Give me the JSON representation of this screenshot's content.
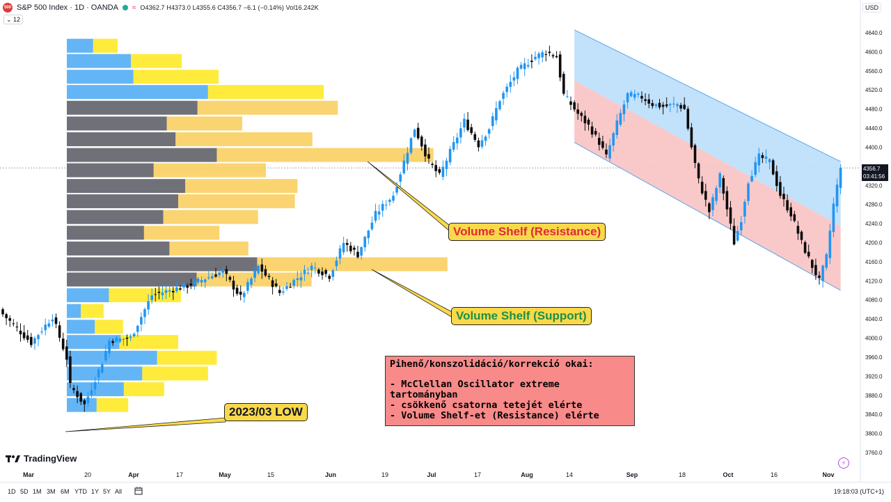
{
  "header": {
    "symbol_badge": "500",
    "title": "S&P 500 Index · 1D · OANDA",
    "ohlc": "O4362.7 H4373.0 L4355.6 C4356.7 −6.1 (−0.14%) Vol16.242K",
    "indicator_count": "12",
    "currency": "USD"
  },
  "price_tag": {
    "price": "4356.7",
    "countdown": "03:41:56"
  },
  "brand": {
    "logo_text": "TradingView"
  },
  "bottom": {
    "ranges": [
      "1D",
      "5D",
      "1M",
      "3M",
      "6M",
      "YTD",
      "1Y",
      "5Y",
      "All"
    ],
    "time": "19:18:03 (UTC+1)"
  },
  "annotations": {
    "resistance": "Volume Shelf (Resistance)",
    "support": "Volume Shelf (Support)",
    "low": "2023/03 LOW"
  },
  "note": {
    "title": "Pihenő/konszolidáció/korrekció okai:",
    "lines": [
      "- McClellan Oscillator extreme tartományban",
      "- csökkenő csatorna tetejét elérte",
      "- Volume Shelf-et (Resistance) elérte"
    ]
  },
  "colors": {
    "up": "#2196f3",
    "down": "#0b0b0b",
    "vp_up": "#64b5f6",
    "vp_gray": "#707078",
    "vp_yellow": "#ffeb3b",
    "vp_orange": "#f9cd58",
    "channel_blue": "#bbdefb",
    "channel_red": "#f8c3c3"
  },
  "chart_data": {
    "type": "candlestick",
    "y_axis": {
      "ticks": [
        3760,
        3800,
        3840,
        3880,
        3920,
        3960,
        4000,
        4040,
        4080,
        4120,
        4160,
        4200,
        4240,
        4280,
        4320,
        4360,
        4400,
        4440,
        4480,
        4520,
        4560,
        4600,
        4640
      ],
      "range": [
        3738,
        4672
      ]
    },
    "x_axis": {
      "labels": [
        "Mar",
        "20",
        "Apr",
        "17",
        "May",
        "15",
        "Jun",
        "19",
        "Jul",
        "17",
        "Aug",
        "14",
        "Sep",
        "18",
        "Oct",
        "16",
        "Nov"
      ],
      "bold": [
        "Mar",
        "Apr",
        "May",
        "Jun",
        "Jul",
        "Aug",
        "Sep",
        "Oct",
        "Nov"
      ]
    },
    "last_price": 4356.7,
    "path_closes": [
      [
        0,
        4050
      ],
      [
        8,
        3990
      ],
      [
        14,
        4045
      ],
      [
        18,
        3958
      ],
      [
        19,
        3900
      ],
      [
        23,
        3860
      ],
      [
        28,
        3950
      ],
      [
        30,
        3995
      ],
      [
        36,
        4000
      ],
      [
        42,
        4090
      ],
      [
        52,
        4110
      ],
      [
        62,
        4140
      ],
      [
        67,
        4085
      ],
      [
        72,
        4150
      ],
      [
        78,
        4095
      ],
      [
        82,
        4120
      ],
      [
        87,
        4150
      ],
      [
        92,
        4130
      ],
      [
        96,
        4200
      ],
      [
        100,
        4175
      ],
      [
        105,
        4260
      ],
      [
        110,
        4300
      ],
      [
        116,
        4440
      ],
      [
        120,
        4370
      ],
      [
        123,
        4340
      ],
      [
        126,
        4390
      ],
      [
        130,
        4455
      ],
      [
        134,
        4405
      ],
      [
        137,
        4440
      ],
      [
        140,
        4500
      ],
      [
        145,
        4560
      ],
      [
        150,
        4590
      ],
      [
        153,
        4600
      ],
      [
        156,
        4590
      ],
      [
        158,
        4510
      ],
      [
        162,
        4470
      ],
      [
        165,
        4445
      ],
      [
        168,
        4410
      ],
      [
        170,
        4380
      ],
      [
        173,
        4450
      ],
      [
        176,
        4510
      ],
      [
        180,
        4505
      ],
      [
        183,
        4490
      ],
      [
        186,
        4485
      ],
      [
        190,
        4490
      ],
      [
        192,
        4480
      ],
      [
        194,
        4400
      ],
      [
        196,
        4330
      ],
      [
        199,
        4265
      ],
      [
        202,
        4340
      ],
      [
        204,
        4270
      ],
      [
        206,
        4200
      ],
      [
        208,
        4250
      ],
      [
        210,
        4330
      ],
      [
        213,
        4380
      ],
      [
        216,
        4370
      ],
      [
        219,
        4300
      ],
      [
        222,
        4260
      ],
      [
        225,
        4200
      ],
      [
        228,
        4150
      ],
      [
        230,
        4120
      ],
      [
        232,
        4170
      ],
      [
        234,
        4280
      ],
      [
        236,
        4356.7
      ]
    ],
    "volume_profile": [
      {
        "price": 4612,
        "buy": 0.3,
        "sell": 0.28
      },
      {
        "price": 4580,
        "buy": 0.73,
        "sell": 0.58
      },
      {
        "price": 4547,
        "buy": 0.76,
        "sell": 0.97
      },
      {
        "price": 4515,
        "buy": 1.61,
        "sell": 1.32
      },
      {
        "price": 4482,
        "buy": 1.49,
        "sell": 1.6,
        "gray": true
      },
      {
        "price": 4449,
        "buy": 1.14,
        "sell": 0.86,
        "gray": true
      },
      {
        "price": 4416,
        "buy": 1.24,
        "sell": 1.56,
        "gray": true
      },
      {
        "price": 4383,
        "buy": 1.71,
        "sell": 2.47,
        "gray": true
      },
      {
        "price": 4351,
        "buy": 0.99,
        "sell": 1.28,
        "gray": true
      },
      {
        "price": 4318,
        "buy": 1.35,
        "sell": 1.28,
        "gray": true
      },
      {
        "price": 4286,
        "buy": 1.27,
        "sell": 1.33,
        "gray": true
      },
      {
        "price": 4253,
        "buy": 1.1,
        "sell": 1.08,
        "gray": true
      },
      {
        "price": 4220,
        "buy": 0.88,
        "sell": 0.86,
        "gray": true
      },
      {
        "price": 4187,
        "buy": 1.17,
        "sell": 0.9,
        "gray": true
      },
      {
        "price": 4154,
        "buy": 2.17,
        "sell": 2.17,
        "gray": true
      },
      {
        "price": 4122,
        "buy": 1.48,
        "sell": 1.31,
        "gray": true
      },
      {
        "price": 4089,
        "buy": 0.48,
        "sell": 0.82
      },
      {
        "price": 4056,
        "buy": 0.16,
        "sell": 0.26
      },
      {
        "price": 4023,
        "buy": 0.32,
        "sell": 0.32
      },
      {
        "price": 3991,
        "buy": 0.6,
        "sell": 0.67
      },
      {
        "price": 3958,
        "buy": 1.03,
        "sell": 0.68
      },
      {
        "price": 3925,
        "buy": 0.86,
        "sell": 0.75
      },
      {
        "price": 3892,
        "buy": 0.65,
        "sell": 0.46
      },
      {
        "price": 3859,
        "buy": 0.34,
        "sell": 0.36
      }
    ],
    "channel": {
      "upper_start": [
        161,
        4646
      ],
      "upper_end": [
        236,
        4370
      ],
      "mid_start": [
        161,
        4540
      ],
      "mid_end": [
        236,
        4235
      ],
      "lower_start": [
        161,
        4410
      ],
      "lower_end": [
        236,
        4100
      ]
    }
  }
}
